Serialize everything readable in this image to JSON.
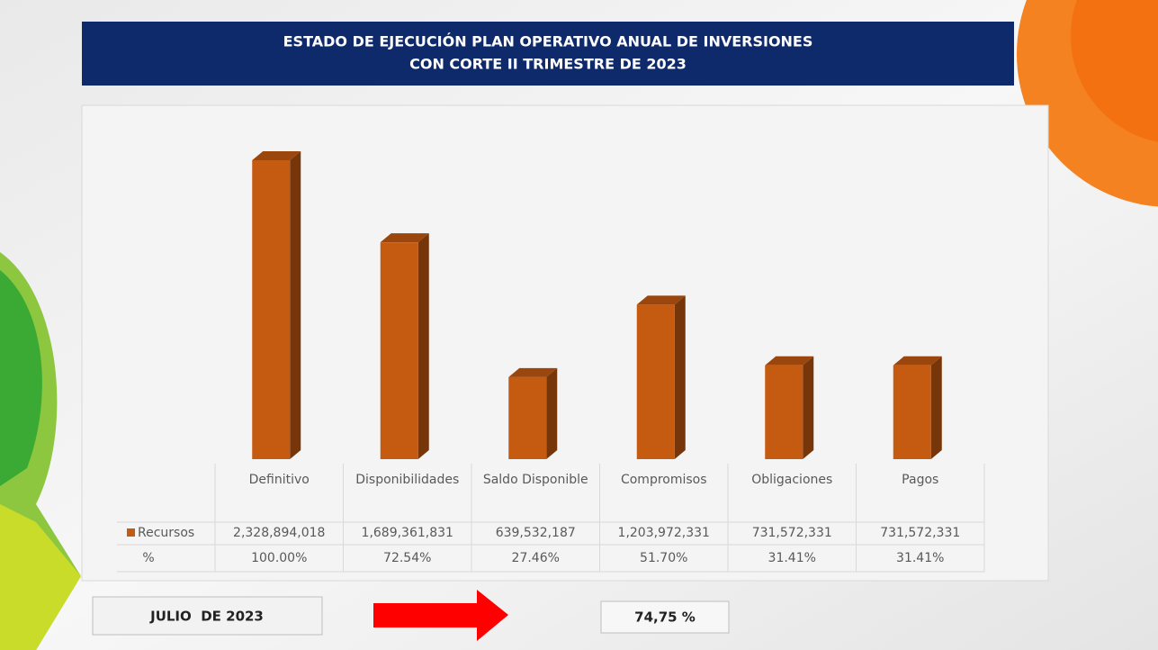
{
  "chart_data": {
    "type": "bar3d",
    "title": [
      "ESTADO DE EJECUCIÓN PLAN OPERATIVO ANUAL DE INVERSIONES",
      "CON CORTE II TRIMESTRE DE 2023"
    ],
    "categories": [
      "Definitivo",
      "Disponibilidades",
      "Saldo Disponible",
      "Compromisos",
      "Obligaciones",
      "Pagos"
    ],
    "series": [
      {
        "name": "Recursos",
        "color": "#c55a11",
        "values": [
          2328894018,
          1689361831,
          639532187,
          1203972331,
          731572331,
          731572331
        ],
        "value_labels": [
          "2,328,894,018",
          "1,689,361,831",
          "639,532,187",
          "1,203,972,331",
          "731,572,331",
          "731,572,331"
        ]
      }
    ],
    "table_rows": [
      {
        "name": "%",
        "values": [
          100.0,
          72.54,
          27.46,
          51.7,
          31.41,
          31.41
        ],
        "value_labels": [
          "100.00%",
          "72.54%",
          "27.46%",
          "51.70%",
          "31.41%",
          "31.41%"
        ]
      }
    ]
  },
  "footer": {
    "period": "JULIO  DE 2023",
    "total": "74,75 %"
  }
}
